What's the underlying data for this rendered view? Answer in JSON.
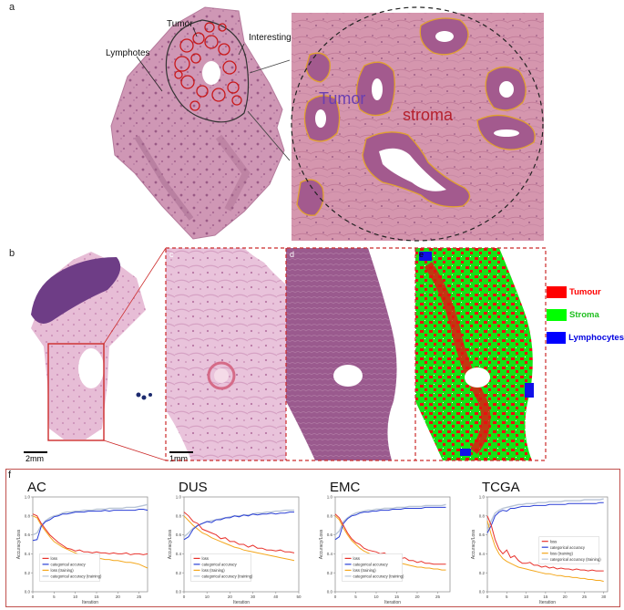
{
  "panel_labels": {
    "a": "a",
    "b": "b",
    "c": "c",
    "d": "d",
    "e": "e",
    "f": "f"
  },
  "panel_a": {
    "annotations": {
      "tumor": "Tumor",
      "interesting_region": "Interesting region",
      "lymphotes": "Lymphotes"
    },
    "zoom_labels": {
      "tumor": "Tumor",
      "stroma": "stroma"
    },
    "colors": {
      "tissue": "#c98fae",
      "outline_tumor": "#c9181a",
      "outline_zoom": "#e0a030",
      "tumor_text": "#6a3fb0",
      "stroma_text": "#b51f2c"
    }
  },
  "panel_b": {
    "scale_bars": {
      "overview": "2mm",
      "detail": "1mm"
    },
    "legend": [
      {
        "label": "Tumour",
        "color": "#ff0000"
      },
      {
        "label": "Stroma",
        "color": "#00ff00"
      },
      {
        "label": "Lymphocytes",
        "color": "#0000ff"
      }
    ]
  },
  "chart_common": {
    "xlabel": "Iteration",
    "ylabel": "Accuracy/Loss",
    "y_ticks": [
      "0.0",
      "0.2",
      "0.4",
      "0.6",
      "0.8",
      "1.0"
    ],
    "ylim": [
      0,
      1
    ],
    "series_colors": {
      "loss": "#e8322c",
      "categorical accuracy": "#2a3fd6",
      "loss (training)": "#f4a71c",
      "categorical accuracy (training)": "#b8c4d6"
    },
    "legend_entries": [
      "loss",
      "categorical accuracy",
      "loss (training)",
      "categorical accuracy (training)"
    ]
  },
  "chart_data": [
    {
      "type": "line",
      "title": "AC",
      "xlabel": "Iteration",
      "ylabel": "Accuracy/Loss",
      "xlim": [
        0,
        27
      ],
      "ylim": [
        0,
        1
      ],
      "x_ticks": [
        "0",
        "5",
        "10",
        "15",
        "20",
        "25"
      ],
      "series": [
        {
          "name": "loss",
          "x": [
            0,
            1,
            2,
            3,
            4,
            5,
            6,
            7,
            8,
            9,
            10,
            11,
            12,
            13,
            14,
            15,
            16,
            17,
            18,
            19,
            20,
            21,
            22,
            23,
            24,
            25,
            26,
            27
          ],
          "values": [
            0.82,
            0.8,
            0.72,
            0.66,
            0.6,
            0.56,
            0.52,
            0.49,
            0.46,
            0.45,
            0.43,
            0.44,
            0.42,
            0.42,
            0.41,
            0.42,
            0.41,
            0.41,
            0.4,
            0.41,
            0.4,
            0.4,
            0.41,
            0.39,
            0.4,
            0.4,
            0.39,
            0.4
          ]
        },
        {
          "name": "categorical accuracy",
          "x": [
            0,
            1,
            2,
            3,
            4,
            5,
            6,
            7,
            8,
            9,
            10,
            11,
            12,
            13,
            14,
            15,
            16,
            17,
            18,
            19,
            20,
            21,
            22,
            23,
            24,
            25,
            26,
            27
          ],
          "values": [
            0.54,
            0.55,
            0.69,
            0.74,
            0.76,
            0.79,
            0.8,
            0.82,
            0.82,
            0.83,
            0.84,
            0.84,
            0.84,
            0.85,
            0.85,
            0.85,
            0.85,
            0.86,
            0.85,
            0.86,
            0.86,
            0.86,
            0.86,
            0.86,
            0.86,
            0.87,
            0.87,
            0.86
          ]
        },
        {
          "name": "loss (training)",
          "x": [
            0,
            1,
            2,
            3,
            4,
            5,
            6,
            7,
            8,
            9,
            10,
            11,
            12,
            13,
            14,
            15,
            16,
            17,
            18,
            19,
            20,
            21,
            22,
            23,
            24,
            25,
            26,
            27
          ],
          "values": [
            0.8,
            0.78,
            0.7,
            0.64,
            0.58,
            0.53,
            0.5,
            0.47,
            0.45,
            0.43,
            0.41,
            0.39,
            0.38,
            0.37,
            0.36,
            0.35,
            0.35,
            0.34,
            0.34,
            0.33,
            0.33,
            0.32,
            0.31,
            0.31,
            0.3,
            0.29,
            0.27,
            0.25
          ]
        },
        {
          "name": "categorical accuracy (training)",
          "x": [
            0,
            1,
            2,
            3,
            4,
            5,
            6,
            7,
            8,
            9,
            10,
            11,
            12,
            13,
            14,
            15,
            16,
            17,
            18,
            19,
            20,
            21,
            22,
            23,
            24,
            25,
            26,
            27
          ],
          "values": [
            0.6,
            0.62,
            0.7,
            0.75,
            0.78,
            0.8,
            0.81,
            0.83,
            0.84,
            0.84,
            0.85,
            0.85,
            0.86,
            0.86,
            0.86,
            0.87,
            0.87,
            0.87,
            0.88,
            0.88,
            0.88,
            0.88,
            0.89,
            0.89,
            0.89,
            0.9,
            0.91,
            0.92
          ]
        }
      ]
    },
    {
      "type": "line",
      "title": "DUS",
      "xlabel": "Iteration",
      "ylabel": "Accuracy/Loss",
      "xlim": [
        0,
        50
      ],
      "ylim": [
        0,
        1
      ],
      "x_ticks": [
        "0",
        "10",
        "20",
        "30",
        "40",
        "50"
      ],
      "series": [
        {
          "name": "loss",
          "x": [
            0,
            2,
            4,
            6,
            8,
            10,
            12,
            14,
            16,
            18,
            20,
            22,
            24,
            26,
            28,
            30,
            32,
            34,
            36,
            38,
            40,
            42,
            44,
            46,
            48
          ],
          "values": [
            0.84,
            0.8,
            0.74,
            0.72,
            0.66,
            0.64,
            0.62,
            0.6,
            0.56,
            0.57,
            0.53,
            0.53,
            0.5,
            0.5,
            0.47,
            0.49,
            0.46,
            0.46,
            0.44,
            0.44,
            0.43,
            0.44,
            0.42,
            0.42,
            0.41
          ]
        },
        {
          "name": "categorical accuracy",
          "x": [
            0,
            2,
            4,
            6,
            8,
            10,
            12,
            14,
            16,
            18,
            20,
            22,
            24,
            26,
            28,
            30,
            32,
            34,
            36,
            38,
            40,
            42,
            44,
            46,
            48
          ],
          "values": [
            0.55,
            0.58,
            0.66,
            0.7,
            0.72,
            0.74,
            0.73,
            0.76,
            0.76,
            0.78,
            0.78,
            0.8,
            0.79,
            0.81,
            0.8,
            0.82,
            0.81,
            0.82,
            0.82,
            0.83,
            0.82,
            0.83,
            0.83,
            0.84,
            0.84
          ]
        },
        {
          "name": "loss (training)",
          "x": [
            0,
            2,
            4,
            6,
            8,
            10,
            12,
            14,
            16,
            18,
            20,
            22,
            24,
            26,
            28,
            30,
            32,
            34,
            36,
            38,
            40,
            42,
            44,
            46,
            48
          ],
          "values": [
            0.8,
            0.75,
            0.7,
            0.66,
            0.62,
            0.6,
            0.57,
            0.55,
            0.53,
            0.51,
            0.49,
            0.47,
            0.46,
            0.44,
            0.43,
            0.42,
            0.41,
            0.4,
            0.39,
            0.38,
            0.37,
            0.36,
            0.35,
            0.34,
            0.33
          ]
        },
        {
          "name": "categorical accuracy (training)",
          "x": [
            0,
            2,
            4,
            6,
            8,
            10,
            12,
            14,
            16,
            18,
            20,
            22,
            24,
            26,
            28,
            30,
            32,
            34,
            36,
            38,
            40,
            42,
            44,
            46,
            48
          ],
          "values": [
            0.58,
            0.62,
            0.67,
            0.7,
            0.72,
            0.74,
            0.75,
            0.76,
            0.77,
            0.78,
            0.79,
            0.8,
            0.8,
            0.81,
            0.81,
            0.82,
            0.83,
            0.83,
            0.84,
            0.84,
            0.85,
            0.85,
            0.86,
            0.86,
            0.86
          ]
        }
      ]
    },
    {
      "type": "line",
      "title": "EMC",
      "xlabel": "Iteration",
      "ylabel": "Accuracy/Loss",
      "xlim": [
        0,
        28
      ],
      "ylim": [
        0,
        1
      ],
      "x_ticks": [
        "0",
        "5",
        "10",
        "15",
        "20",
        "25"
      ],
      "series": [
        {
          "name": "loss",
          "x": [
            0,
            1,
            2,
            3,
            4,
            5,
            6,
            7,
            8,
            9,
            10,
            11,
            12,
            13,
            14,
            15,
            16,
            17,
            18,
            19,
            20,
            21,
            22,
            23,
            24,
            25,
            26,
            27
          ],
          "values": [
            0.82,
            0.78,
            0.7,
            0.62,
            0.56,
            0.52,
            0.5,
            0.46,
            0.44,
            0.43,
            0.42,
            0.4,
            0.41,
            0.38,
            0.36,
            0.37,
            0.35,
            0.36,
            0.33,
            0.33,
            0.31,
            0.32,
            0.3,
            0.3,
            0.29,
            0.29,
            0.29,
            0.29
          ]
        },
        {
          "name": "categorical accuracy",
          "x": [
            0,
            1,
            2,
            3,
            4,
            5,
            6,
            7,
            8,
            9,
            10,
            11,
            12,
            13,
            14,
            15,
            16,
            17,
            18,
            19,
            20,
            21,
            22,
            23,
            24,
            25,
            26,
            27
          ],
          "values": [
            0.55,
            0.58,
            0.72,
            0.77,
            0.8,
            0.81,
            0.83,
            0.84,
            0.84,
            0.85,
            0.85,
            0.86,
            0.86,
            0.86,
            0.87,
            0.87,
            0.87,
            0.88,
            0.88,
            0.88,
            0.88,
            0.88,
            0.89,
            0.89,
            0.89,
            0.89,
            0.89,
            0.89
          ]
        },
        {
          "name": "loss (training)",
          "x": [
            0,
            1,
            2,
            3,
            4,
            5,
            6,
            7,
            8,
            9,
            10,
            11,
            12,
            13,
            14,
            15,
            16,
            17,
            18,
            19,
            20,
            21,
            22,
            23,
            24,
            25,
            26,
            27
          ],
          "values": [
            0.8,
            0.76,
            0.67,
            0.6,
            0.54,
            0.5,
            0.46,
            0.43,
            0.41,
            0.39,
            0.37,
            0.36,
            0.34,
            0.33,
            0.32,
            0.31,
            0.3,
            0.29,
            0.28,
            0.27,
            0.26,
            0.26,
            0.25,
            0.25,
            0.24,
            0.24,
            0.23,
            0.23
          ]
        },
        {
          "name": "categorical accuracy (training)",
          "x": [
            0,
            1,
            2,
            3,
            4,
            5,
            6,
            7,
            8,
            9,
            10,
            11,
            12,
            13,
            14,
            15,
            16,
            17,
            18,
            19,
            20,
            21,
            22,
            23,
            24,
            25,
            26,
            27
          ],
          "values": [
            0.6,
            0.64,
            0.74,
            0.78,
            0.81,
            0.83,
            0.84,
            0.85,
            0.86,
            0.86,
            0.87,
            0.87,
            0.88,
            0.88,
            0.88,
            0.89,
            0.89,
            0.89,
            0.9,
            0.9,
            0.9,
            0.9,
            0.91,
            0.91,
            0.91,
            0.91,
            0.91,
            0.92
          ]
        }
      ]
    },
    {
      "type": "line",
      "title": "TCGA",
      "xlabel": "Iteration",
      "ylabel": "Accuracy/Loss",
      "xlim": [
        0,
        31
      ],
      "ylim": [
        0,
        1
      ],
      "x_ticks": [
        "0",
        "5",
        "10",
        "15",
        "20",
        "25",
        "30"
      ],
      "series": [
        {
          "name": "loss",
          "x": [
            0,
            1,
            2,
            3,
            4,
            5,
            6,
            7,
            8,
            9,
            10,
            11,
            12,
            13,
            14,
            15,
            16,
            17,
            18,
            19,
            20,
            21,
            22,
            23,
            24,
            25,
            26,
            27,
            28,
            29,
            30
          ],
          "values": [
            0.8,
            0.7,
            0.55,
            0.45,
            0.4,
            0.44,
            0.36,
            0.38,
            0.33,
            0.3,
            0.3,
            0.31,
            0.28,
            0.28,
            0.26,
            0.27,
            0.25,
            0.26,
            0.24,
            0.25,
            0.24,
            0.24,
            0.23,
            0.24,
            0.23,
            0.23,
            0.22,
            0.23,
            0.22,
            0.22,
            0.22
          ]
        },
        {
          "name": "categorical accuracy",
          "x": [
            0,
            1,
            2,
            3,
            4,
            5,
            6,
            7,
            8,
            9,
            10,
            11,
            12,
            13,
            14,
            15,
            16,
            17,
            18,
            19,
            20,
            21,
            22,
            23,
            24,
            25,
            26,
            27,
            28,
            29,
            30
          ],
          "values": [
            0.62,
            0.7,
            0.8,
            0.84,
            0.86,
            0.85,
            0.88,
            0.88,
            0.89,
            0.9,
            0.9,
            0.9,
            0.91,
            0.91,
            0.91,
            0.91,
            0.92,
            0.92,
            0.92,
            0.92,
            0.92,
            0.93,
            0.93,
            0.93,
            0.93,
            0.93,
            0.93,
            0.93,
            0.93,
            0.94,
            0.94
          ]
        },
        {
          "name": "loss (training)",
          "x": [
            0,
            1,
            2,
            3,
            4,
            5,
            6,
            7,
            8,
            9,
            10,
            11,
            12,
            13,
            14,
            15,
            16,
            17,
            18,
            19,
            20,
            21,
            22,
            23,
            24,
            25,
            26,
            27,
            28,
            29,
            30
          ],
          "values": [
            0.75,
            0.6,
            0.48,
            0.4,
            0.35,
            0.32,
            0.3,
            0.28,
            0.26,
            0.25,
            0.24,
            0.23,
            0.22,
            0.21,
            0.2,
            0.19,
            0.19,
            0.18,
            0.17,
            0.17,
            0.16,
            0.16,
            0.15,
            0.15,
            0.14,
            0.14,
            0.13,
            0.13,
            0.12,
            0.12,
            0.11
          ]
        },
        {
          "name": "categorical accuracy (training)",
          "x": [
            0,
            1,
            2,
            3,
            4,
            5,
            6,
            7,
            8,
            9,
            10,
            11,
            12,
            13,
            14,
            15,
            16,
            17,
            18,
            19,
            20,
            21,
            22,
            23,
            24,
            25,
            26,
            27,
            28,
            29,
            30
          ],
          "values": [
            0.65,
            0.75,
            0.83,
            0.86,
            0.88,
            0.89,
            0.9,
            0.91,
            0.92,
            0.92,
            0.93,
            0.93,
            0.93,
            0.94,
            0.94,
            0.94,
            0.95,
            0.95,
            0.95,
            0.95,
            0.96,
            0.96,
            0.96,
            0.96,
            0.96,
            0.97,
            0.97,
            0.97,
            0.97,
            0.97,
            0.98
          ]
        }
      ]
    }
  ]
}
